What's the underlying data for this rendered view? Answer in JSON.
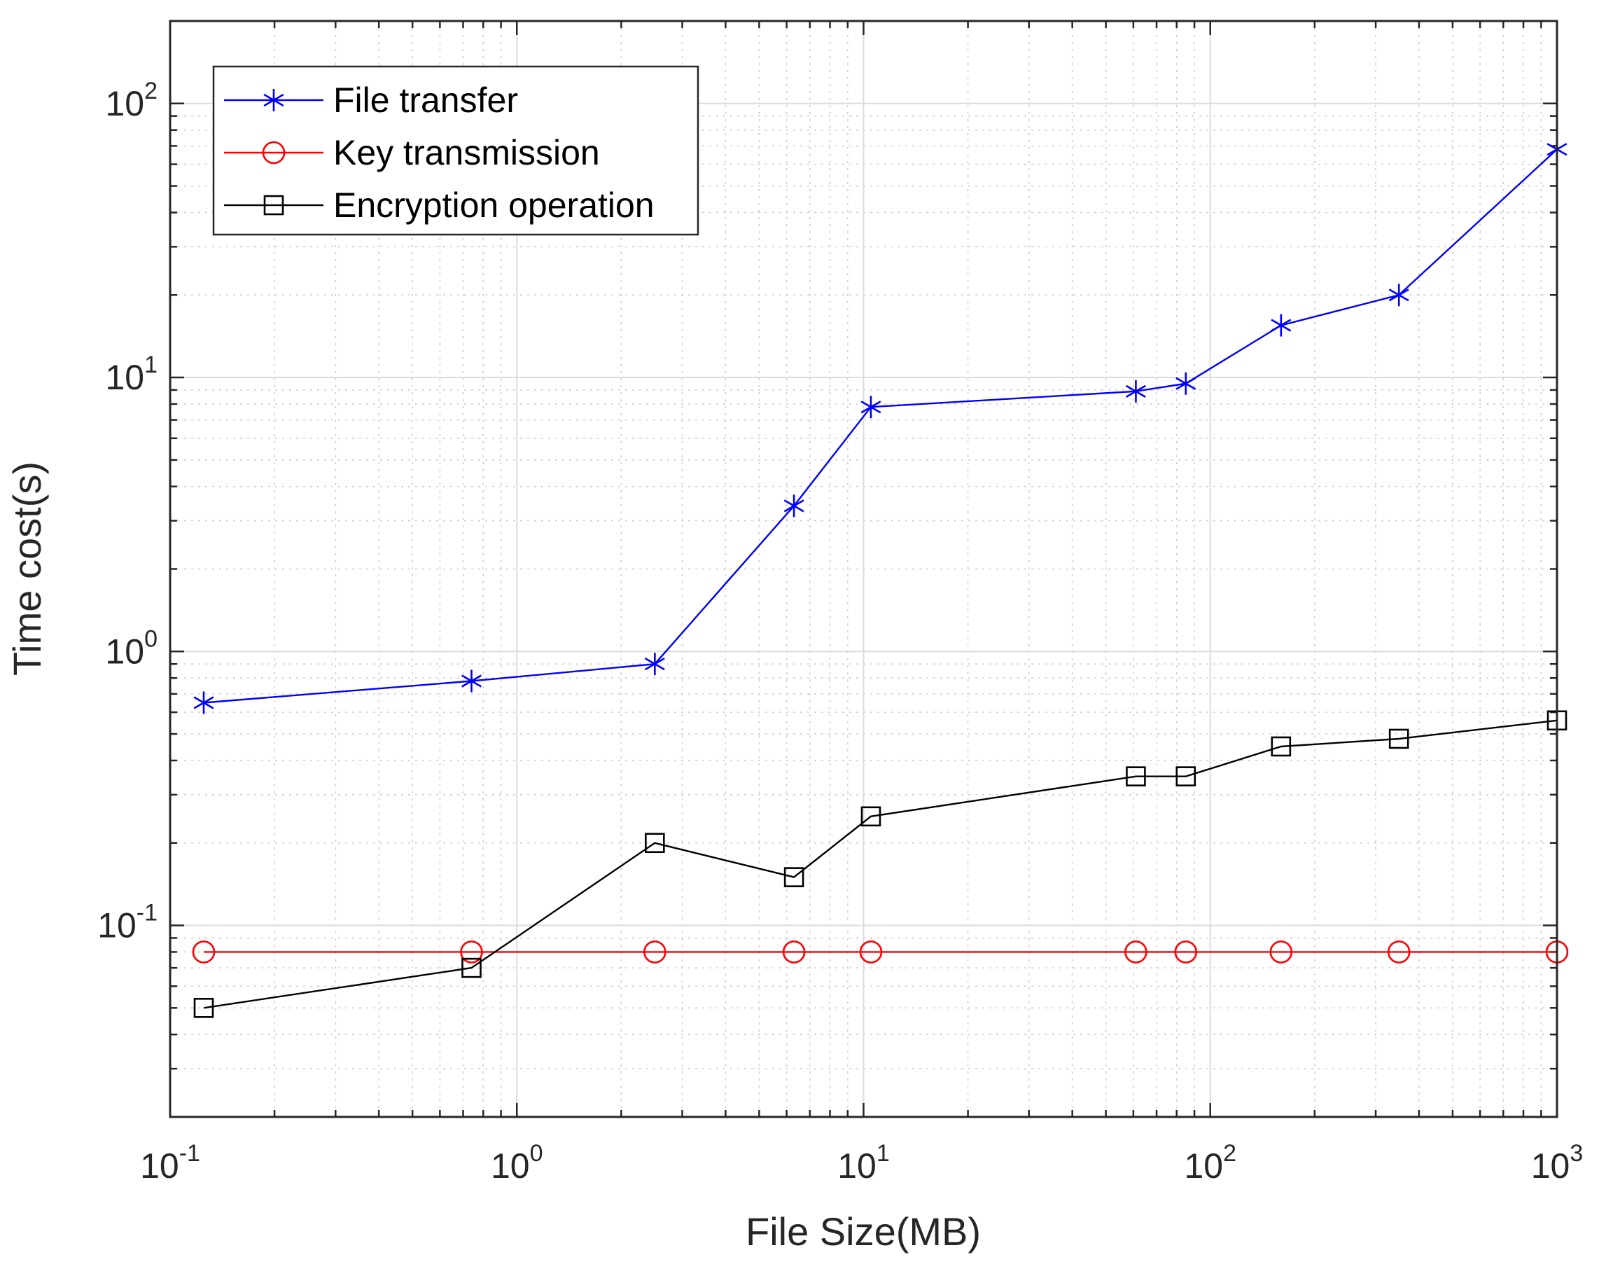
{
  "chart_data": {
    "type": "line",
    "title": "",
    "xlabel": "File Size(MB)",
    "ylabel": "Time cost(s)",
    "xscale": "log",
    "yscale": "log",
    "xlim": [
      0.1,
      1000
    ],
    "ylim": [
      0.02,
      200
    ],
    "xticks": [
      {
        "base": "10",
        "exp": "-1"
      },
      {
        "base": "10",
        "exp": "0"
      },
      {
        "base": "10",
        "exp": "1"
      },
      {
        "base": "10",
        "exp": "2"
      },
      {
        "base": "10",
        "exp": "3"
      }
    ],
    "yticks": [
      {
        "base": "10",
        "exp": "-1"
      },
      {
        "base": "10",
        "exp": "0"
      },
      {
        "base": "10",
        "exp": "1"
      },
      {
        "base": "10",
        "exp": "2"
      }
    ],
    "grid": true,
    "legend_position": "top-left",
    "x": [
      0.125,
      0.74,
      2.5,
      6.3,
      10.5,
      61,
      85,
      160,
      350,
      1000
    ],
    "series": [
      {
        "name": "File transfer",
        "color": "#0000ff",
        "marker": "asterisk",
        "values": [
          0.65,
          0.78,
          0.9,
          3.4,
          7.8,
          8.9,
          9.5,
          15.5,
          20,
          68
        ]
      },
      {
        "name": "Key transmission",
        "color": "#ff0000",
        "marker": "circle",
        "values": [
          0.08,
          0.08,
          0.08,
          0.08,
          0.08,
          0.08,
          0.08,
          0.08,
          0.08,
          0.08
        ]
      },
      {
        "name": "Encryption operation",
        "color": "#000000",
        "marker": "square",
        "values": [
          0.05,
          0.07,
          0.2,
          0.15,
          0.25,
          0.35,
          0.35,
          0.45,
          0.48,
          0.56
        ]
      }
    ]
  }
}
